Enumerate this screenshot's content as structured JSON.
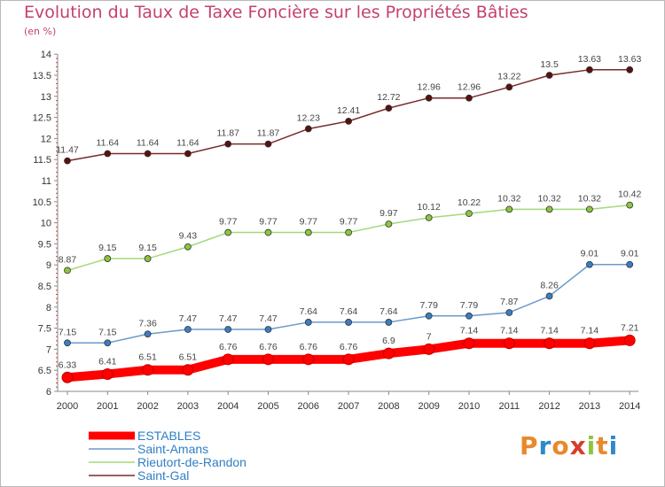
{
  "header": {
    "title": "Evolution du Taux de Taxe Foncière sur les Propriétés Bâties",
    "subtitle": "(en %)"
  },
  "logo": {
    "text": "Proxiti",
    "colors": [
      "#e8892c",
      "#2f88c9",
      "#e8892c",
      "#d93c2c",
      "#8cc63f",
      "#e8892c",
      "#2f88c9"
    ]
  },
  "chart_data": {
    "type": "line",
    "x": [
      "2000",
      "2001",
      "2002",
      "2003",
      "2004",
      "2005",
      "2006",
      "2007",
      "2008",
      "2009",
      "2010",
      "2011",
      "2012",
      "2013",
      "2014"
    ],
    "ylim": [
      6,
      14
    ],
    "yticks": [
      "6",
      "6.5",
      "7",
      "7.5",
      "8",
      "8.5",
      "9",
      "9.5",
      "10",
      "10.5",
      "11",
      "11.5",
      "12",
      "12.5",
      "13",
      "13.5",
      "14"
    ],
    "grid": false,
    "legend": "bottom-left",
    "series": [
      {
        "name": "Saint-Gal",
        "color": "#7a2a2a",
        "marker": "#5a1010",
        "values": [
          11.47,
          11.64,
          11.64,
          11.64,
          11.87,
          11.87,
          12.23,
          12.41,
          12.72,
          12.96,
          12.96,
          13.22,
          13.5,
          13.63,
          13.63
        ],
        "labels": [
          "11.47",
          "11.64",
          "11.64",
          "11.64",
          "11.87",
          "11.87",
          "12.23",
          "12.41",
          "12.72",
          "12.96",
          "12.96",
          "13.22",
          "13.5",
          "13.63",
          "13.63"
        ]
      },
      {
        "name": "Rieutort-de-Randon",
        "color": "#a3d97a",
        "marker": "#8cc63f",
        "values": [
          8.87,
          9.15,
          9.15,
          9.43,
          9.77,
          9.77,
          9.77,
          9.77,
          9.97,
          10.12,
          10.22,
          10.32,
          10.32,
          10.32,
          10.42
        ],
        "labels": [
          "8.87",
          "9.15",
          "9.15",
          "9.43",
          "9.77",
          "9.77",
          "9.77",
          "9.77",
          "9.97",
          "10.12",
          "10.22",
          "10.32",
          "10.32",
          "10.32",
          "10.42"
        ]
      },
      {
        "name": "Saint-Amans",
        "color": "#6b9ac9",
        "marker": "#3a7ec4",
        "values": [
          7.15,
          7.15,
          7.36,
          7.47,
          7.47,
          7.47,
          7.64,
          7.64,
          7.64,
          7.79,
          7.79,
          7.87,
          8.26,
          9.01,
          9.01
        ],
        "labels": [
          "7.15",
          "7.15",
          "7.36",
          "7.47",
          "7.47",
          "7.47",
          "7.64",
          "7.64",
          "7.64",
          "7.79",
          "7.79",
          "7.87",
          "8.26",
          "9.01",
          "9.01"
        ]
      },
      {
        "name": "ESTABLES",
        "color": "#ff0000",
        "marker": "#ff0000",
        "values": [
          6.33,
          6.41,
          6.51,
          6.51,
          6.76,
          6.76,
          6.76,
          6.76,
          6.9,
          7,
          7.14,
          7.14,
          7.14,
          7.14,
          7.21
        ],
        "labels": [
          "6.33",
          "6.41",
          "6.51",
          "6.51",
          "6.76",
          "6.76",
          "6.76",
          "6.76",
          "6.9",
          "7",
          "7.14",
          "7.14",
          "7.14",
          "7.14",
          "7.21"
        ]
      }
    ],
    "legend_order": [
      "ESTABLES",
      "Saint-Amans",
      "Rieutort-de-Randon",
      "Saint-Gal"
    ]
  }
}
